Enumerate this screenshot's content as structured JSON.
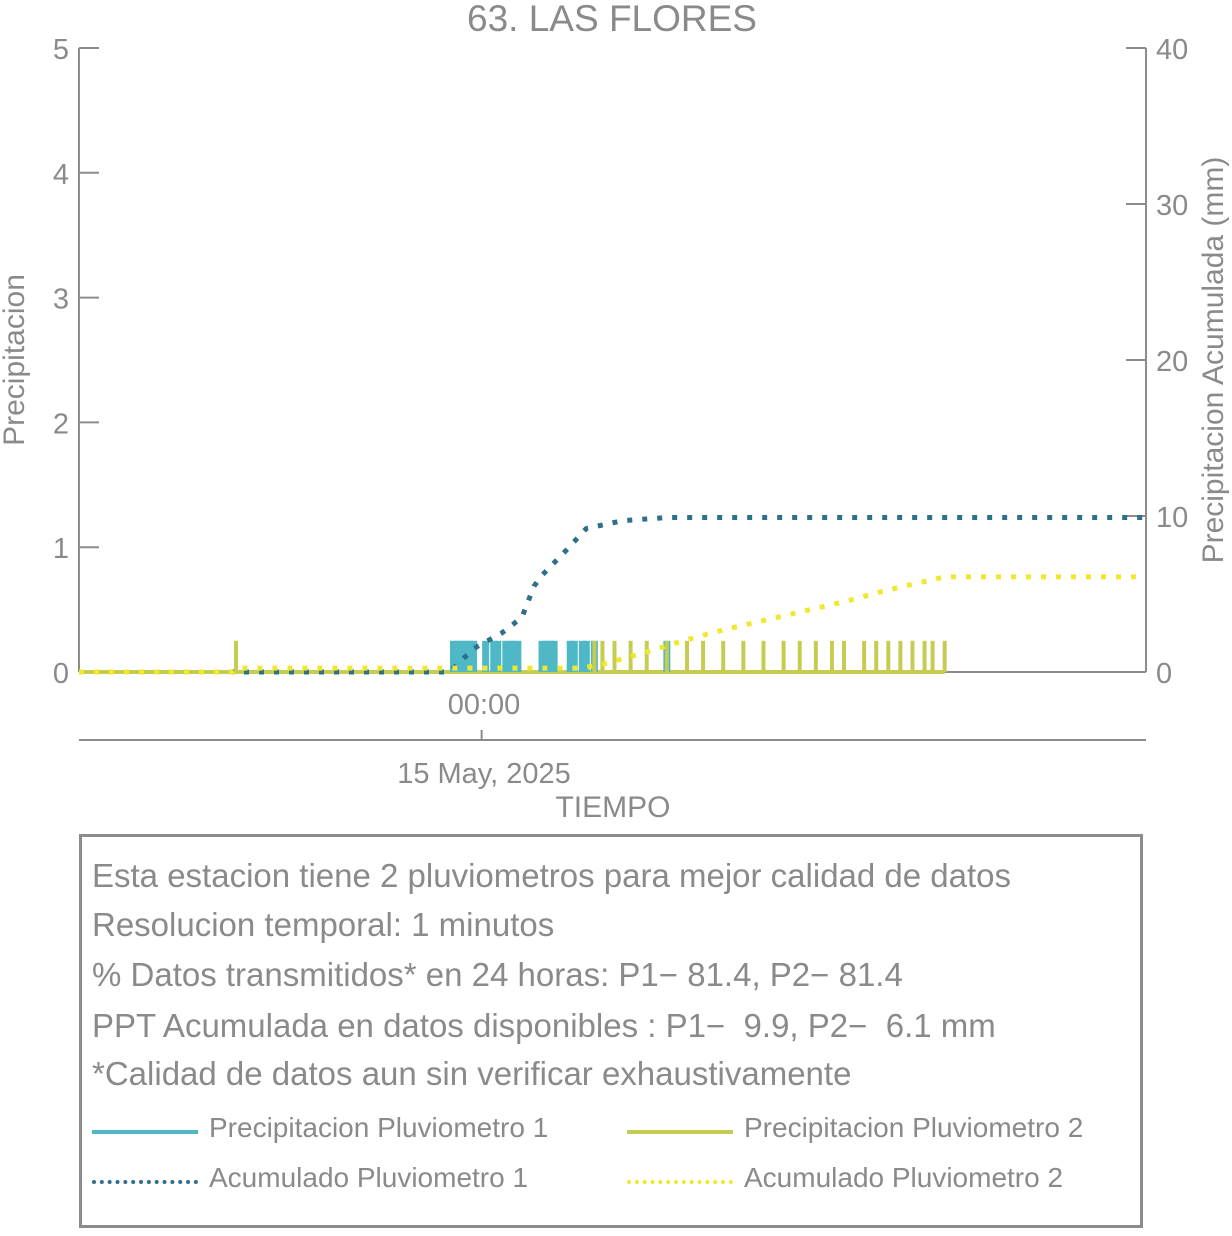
{
  "chart_data": {
    "type": "line",
    "title": "63. LAS FLORES",
    "xlabel": "TIEMPO",
    "ylabel": "Precipitacion",
    "ylabel_right": "Precipitacion Acumulada (mm)",
    "x_tick_time": "00:00",
    "x_tick_date": "15 May, 2025",
    "xlim_hours": [
      -10,
      16.5
    ],
    "ylim": [
      0,
      5
    ],
    "yticks": [
      "0",
      "1",
      "2",
      "3",
      "4",
      "5"
    ],
    "ylim_right": [
      0,
      40
    ],
    "yticks_right": [
      "0",
      "10",
      "20",
      "30",
      "40"
    ],
    "grid": false,
    "colors": {
      "p1_bar": "#4fb8c6",
      "p2_bar": "#c6cc52",
      "p1_cum": "#2e6f8a",
      "p2_cum": "#f0e830"
    },
    "series": [
      {
        "name": "Precipitacion Pluviometro 1",
        "kind": "bar",
        "axis": "left",
        "x_hours": [
          -0.7,
          -0.6,
          -0.5,
          -0.4,
          -0.3,
          -0.2,
          0.1,
          0.3,
          0.4,
          0.6,
          0.7,
          0.8,
          0.9,
          1.5,
          1.6,
          1.7,
          1.8,
          2.2,
          2.3,
          2.5,
          2.6,
          2.8,
          4.6
        ],
        "values": [
          0.25,
          0.25,
          0.25,
          0.25,
          0.25,
          0.25,
          0.25,
          0.25,
          0.25,
          0.25,
          0.25,
          0.25,
          0.25,
          0.25,
          0.25,
          0.25,
          0.25,
          0.25,
          0.25,
          0.25,
          0.25,
          0.25,
          0.25
        ]
      },
      {
        "name": "Precipitacion Pluviometro 2",
        "kind": "bar",
        "axis": "left",
        "x_hours": [
          -6.1,
          2.8,
          3.0,
          3.3,
          3.7,
          4.1,
          4.6,
          5.1,
          5.5,
          6.0,
          6.5,
          7.0,
          7.5,
          7.9,
          8.3,
          8.7,
          9.0,
          9.5,
          9.8,
          10.1,
          10.4,
          10.7,
          11.0,
          11.2,
          11.5
        ],
        "values": [
          0.25,
          0.25,
          0.25,
          0.25,
          0.25,
          0.25,
          0.25,
          0.25,
          0.25,
          0.25,
          0.25,
          0.25,
          0.25,
          0.25,
          0.25,
          0.25,
          0.25,
          0.25,
          0.25,
          0.25,
          0.25,
          0.25,
          0.25,
          0.25,
          0.25
        ]
      },
      {
        "name": "Acumulado Pluviometro 1",
        "kind": "line",
        "style": "dotted",
        "axis": "right",
        "x_hours": [
          -10,
          -0.8,
          -0.2,
          0.5,
          1.0,
          1.3,
          1.5,
          2.1,
          2.6,
          3.5,
          4.6,
          16.5
        ],
        "values": [
          0,
          0,
          1.5,
          2.5,
          3.5,
          5.5,
          6.2,
          7.8,
          9.2,
          9.7,
          9.9,
          9.9
        ]
      },
      {
        "name": "Acumulado Pluviometro 2",
        "kind": "line",
        "style": "dotted",
        "axis": "right",
        "x_hours": [
          -10,
          -6.2,
          -6.1,
          2.5,
          3.0,
          4.0,
          5.0,
          6.0,
          7.0,
          8.0,
          9.0,
          10.0,
          11.0,
          11.5,
          16.5
        ],
        "values": [
          0,
          0,
          0.25,
          0.25,
          0.5,
          1.2,
          2.0,
          2.7,
          3.3,
          3.9,
          4.5,
          5.2,
          5.8,
          6.1,
          6.1
        ]
      }
    ]
  },
  "info": {
    "lines": [
      "Esta estacion tiene 2 pluviometros para mejor calidad de datos",
      "Resolucion temporal: 1 minutos",
      "% Datos transmitidos* en 24 horas: P1− 81.4, P2− 81.4",
      "PPT Acumulada en datos disponibles : P1−  9.9, P2−  6.1 mm",
      "*Calidad de datos aun sin verificar exhaustivamente"
    ]
  },
  "legend": [
    {
      "label": "Precipitacion Pluviometro 1",
      "color": "#4fb8c6",
      "style": "solid"
    },
    {
      "label": "Precipitacion Pluviometro 2",
      "color": "#c6cc52",
      "style": "solid"
    },
    {
      "label": "Acumulado Pluviometro 1",
      "color": "#2e6f8a",
      "style": "dotted"
    },
    {
      "label": "Acumulado Pluviometro 2",
      "color": "#f0e830",
      "style": "dotted"
    }
  ]
}
